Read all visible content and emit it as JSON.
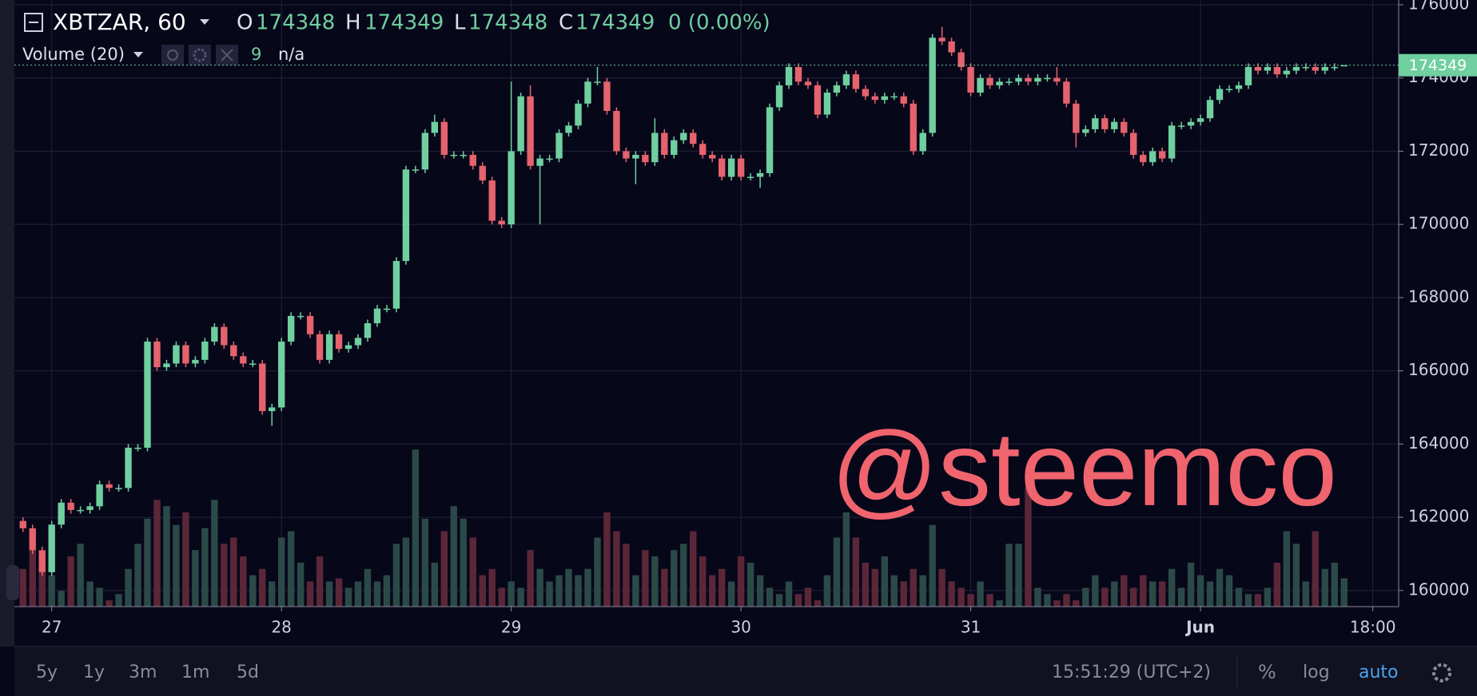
{
  "chart_data": {
    "type": "candlestick",
    "symbol": "XBTZAR, 60",
    "labels": {
      "open": "O",
      "high": "H",
      "low": "L",
      "close": "C"
    },
    "change": "0 (0.00%)",
    "volume_label": "Volume (20)",
    "volume_na": "n/a",
    "watermark": "@steemco",
    "x": [
      -3,
      -2,
      -1,
      0,
      1,
      2,
      3,
      4,
      5,
      6,
      7,
      8,
      9,
      10,
      11,
      12,
      13,
      14,
      15,
      16,
      17,
      18,
      19,
      20,
      21,
      22,
      23,
      24,
      25,
      26,
      27,
      28,
      29,
      30,
      31,
      32,
      33,
      34,
      35,
      36,
      37,
      38,
      39,
      40,
      41,
      42,
      43,
      44,
      45,
      46,
      47,
      48,
      49,
      50,
      51,
      52,
      53,
      54,
      55,
      56,
      57,
      58,
      59,
      60,
      61,
      62,
      63,
      64,
      65,
      66,
      67,
      68,
      69,
      70,
      71,
      72,
      73,
      74,
      75,
      76,
      77,
      78,
      79,
      80,
      81,
      82,
      83,
      84,
      85,
      86,
      87,
      88,
      89,
      90,
      91,
      92,
      93,
      94,
      95,
      96,
      97,
      98,
      99,
      100,
      101,
      102,
      103,
      104,
      105,
      106,
      107,
      108,
      109,
      110,
      111,
      112,
      113,
      114,
      115,
      116,
      117,
      118,
      119,
      120,
      121,
      122,
      123,
      124,
      125,
      126,
      127,
      128,
      129,
      130,
      131,
      132,
      133,
      134,
      135
    ],
    "open": [
      161900,
      161700,
      161100,
      160500,
      161800,
      162400,
      162200,
      162200,
      162300,
      162900,
      162800,
      162800,
      163900,
      163900,
      166800,
      166100,
      166200,
      166700,
      166200,
      166300,
      166800,
      167200,
      166700,
      166400,
      166200,
      166200,
      164900,
      165000,
      166800,
      167500,
      167500,
      167000,
      166300,
      167000,
      166600,
      166700,
      166900,
      167300,
      167700,
      167700,
      169000,
      171500,
      171500,
      172500,
      172800,
      171900,
      171900,
      171900,
      171600,
      171200,
      170100,
      170000,
      172000,
      173500,
      171600,
      171800,
      171800,
      172500,
      172700,
      173300,
      173900,
      173900,
      173100,
      172000,
      171800,
      171900,
      171700,
      172500,
      171900,
      172300,
      172500,
      172200,
      171900,
      171800,
      171300,
      171800,
      171300,
      171300,
      171400,
      173200,
      173800,
      174300,
      173900,
      173800,
      173000,
      173600,
      173800,
      174100,
      173700,
      173500,
      173400,
      173500,
      173500,
      173300,
      172000,
      172500,
      175100,
      175000,
      174700,
      174300,
      173600,
      174000,
      173800,
      173900,
      173900,
      174000,
      173900,
      174000,
      174000,
      173900,
      173300,
      172500,
      172600,
      172900,
      172600,
      172800,
      172500,
      171900,
      171700,
      172000,
      171800,
      172700,
      172700,
      172800,
      172900,
      173400,
      173700,
      173700,
      173800,
      174300,
      174200,
      174300,
      174100,
      174200,
      174300,
      174300,
      174200,
      174300,
      174348
    ],
    "high": [
      162000,
      161800,
      161200,
      161900,
      162500,
      162500,
      162300,
      162400,
      163000,
      163000,
      162900,
      164000,
      164000,
      166900,
      166900,
      166300,
      166800,
      166800,
      166400,
      166900,
      167300,
      167300,
      166800,
      166500,
      166300,
      166300,
      165100,
      166900,
      167600,
      167600,
      167600,
      167100,
      167100,
      167100,
      166800,
      167000,
      167400,
      167800,
      167800,
      169100,
      171600,
      171600,
      172600,
      173000,
      172900,
      172000,
      172000,
      172000,
      171700,
      171300,
      170200,
      173900,
      173600,
      173800,
      171900,
      171900,
      172600,
      172800,
      173400,
      174000,
      174300,
      174000,
      173200,
      172100,
      172000,
      172000,
      172900,
      172600,
      172400,
      172600,
      172600,
      172300,
      172000,
      171900,
      171900,
      171900,
      171400,
      171500,
      173300,
      173900,
      174400,
      174400,
      174000,
      173900,
      173700,
      173900,
      174200,
      174200,
      173800,
      173600,
      173600,
      173600,
      173600,
      173400,
      172600,
      175200,
      175400,
      175100,
      174800,
      174400,
      174100,
      174100,
      174000,
      174000,
      174100,
      174100,
      174100,
      174100,
      174300,
      174000,
      173400,
      172700,
      173000,
      173000,
      172900,
      172900,
      172600,
      172000,
      172100,
      172100,
      172800,
      172800,
      172900,
      173000,
      173500,
      173800,
      173800,
      173900,
      174400,
      174400,
      174400,
      174400,
      174300,
      174400,
      174400,
      174400,
      174400,
      174400,
      174349
    ],
    "low": [
      161600,
      161000,
      160400,
      160400,
      161700,
      162100,
      162100,
      162100,
      162200,
      162700,
      162700,
      162700,
      163800,
      163800,
      166000,
      166000,
      166100,
      166100,
      166100,
      166200,
      166700,
      166600,
      166300,
      166100,
      166100,
      164800,
      164500,
      164900,
      166700,
      167400,
      166900,
      166200,
      166200,
      166500,
      166500,
      166600,
      166800,
      167200,
      167600,
      167600,
      168900,
      171400,
      171400,
      172400,
      171800,
      171800,
      171800,
      171500,
      171100,
      170000,
      169900,
      169900,
      171900,
      171500,
      170000,
      171700,
      171700,
      172400,
      172600,
      173200,
      173800,
      173000,
      171900,
      171700,
      171100,
      171600,
      171600,
      171800,
      171800,
      172200,
      172100,
      171800,
      171700,
      171200,
      171200,
      171200,
      171200,
      171000,
      171300,
      173100,
      173700,
      173800,
      173700,
      172900,
      172900,
      173500,
      173700,
      173600,
      173400,
      173300,
      173300,
      173400,
      173200,
      171900,
      171900,
      172400,
      174900,
      174600,
      174200,
      173500,
      173500,
      173700,
      173700,
      173800,
      173800,
      173800,
      173800,
      173900,
      173800,
      173200,
      172100,
      172400,
      172500,
      172500,
      172500,
      172400,
      171800,
      171600,
      171600,
      171700,
      171700,
      172600,
      172600,
      172700,
      172800,
      173300,
      173600,
      173600,
      173700,
      174100,
      174100,
      174000,
      174000,
      174100,
      174200,
      174100,
      174100,
      174200,
      174348
    ],
    "close": [
      161700,
      161100,
      160500,
      161800,
      162400,
      162200,
      162200,
      162300,
      162900,
      162800,
      162800,
      163900,
      163900,
      166800,
      166100,
      166200,
      166700,
      166200,
      166300,
      166800,
      167200,
      166700,
      166400,
      166200,
      166200,
      164900,
      165000,
      166800,
      167500,
      167500,
      167000,
      166300,
      167000,
      166600,
      166700,
      166900,
      167300,
      167700,
      167700,
      169000,
      171500,
      171500,
      172500,
      172800,
      171900,
      171900,
      171900,
      171600,
      171200,
      170100,
      170000,
      172000,
      173500,
      171600,
      171800,
      171800,
      172500,
      172700,
      173300,
      173900,
      173900,
      173100,
      172000,
      171800,
      171900,
      171700,
      172500,
      171900,
      172300,
      172500,
      172200,
      171900,
      171800,
      171300,
      171800,
      171300,
      171300,
      171400,
      173200,
      173800,
      174300,
      173900,
      173800,
      173000,
      173600,
      173800,
      174100,
      173700,
      173500,
      173400,
      173500,
      173500,
      173300,
      172000,
      172500,
      175100,
      175000,
      174700,
      174300,
      173600,
      174000,
      173800,
      173900,
      173900,
      174000,
      173900,
      174000,
      174000,
      173900,
      173300,
      172500,
      172600,
      172900,
      172600,
      172800,
      172500,
      171900,
      171700,
      172000,
      171800,
      172700,
      172700,
      172800,
      172900,
      173400,
      173700,
      173700,
      173800,
      174300,
      174200,
      174300,
      174100,
      174200,
      174300,
      174300,
      174200,
      174300,
      174300,
      174349
    ],
    "volume": [
      12,
      18,
      14,
      10,
      5,
      16,
      20,
      8,
      6,
      2,
      4,
      12,
      20,
      28,
      34,
      32,
      26,
      30,
      18,
      25,
      34,
      20,
      22,
      16,
      10,
      12,
      8,
      22,
      24,
      14,
      8,
      16,
      8,
      9,
      6,
      8,
      12,
      8,
      10,
      20,
      22,
      50,
      28,
      14,
      24,
      32,
      28,
      22,
      10,
      12,
      6,
      8,
      6,
      18,
      12,
      8,
      10,
      12,
      10,
      12,
      22,
      30,
      24,
      20,
      10,
      18,
      16,
      12,
      18,
      20,
      24,
      16,
      10,
      12,
      8,
      16,
      14,
      10,
      6,
      4,
      8,
      4,
      6,
      2,
      10,
      22,
      30,
      22,
      14,
      12,
      16,
      10,
      8,
      12,
      10,
      26,
      12,
      8,
      6,
      4,
      8,
      4,
      2,
      20,
      20,
      38,
      6,
      4,
      2,
      4,
      2,
      6,
      10,
      6,
      8,
      10,
      6,
      10,
      8,
      8,
      12,
      6,
      14,
      10,
      8,
      12,
      10,
      6,
      4,
      4,
      6,
      14,
      24,
      20,
      8,
      24,
      12,
      14,
      9
    ],
    "up_color": "#6fcf9f",
    "down_color": "#e4636c",
    "volume_up_color": "#2b4a47",
    "volume_down_color": "#5b2738",
    "xlim": [
      -3.9,
      140.7
    ],
    "xticks": [
      {
        "value": 0,
        "label": "27"
      },
      {
        "value": 24,
        "label": "28"
      },
      {
        "value": 48,
        "label": "29"
      },
      {
        "value": 72,
        "label": "30"
      },
      {
        "value": 96,
        "label": "31"
      },
      {
        "value": 120,
        "label": "Jun"
      },
      {
        "value": 138,
        "label": "18:00"
      }
    ],
    "ylim": [
      159560,
      176130
    ],
    "yticks": [
      160000,
      162000,
      164000,
      166000,
      168000,
      170000,
      172000,
      174000,
      176000
    ],
    "volume_lim": [
      0,
      60
    ],
    "grid": true
  },
  "toolbar": {
    "ranges": [
      "5y",
      "1y",
      "3m",
      "1m",
      "5d"
    ],
    "time": "15:51:29 (UTC+2)",
    "percent": "%",
    "log": "log",
    "auto": "auto"
  }
}
